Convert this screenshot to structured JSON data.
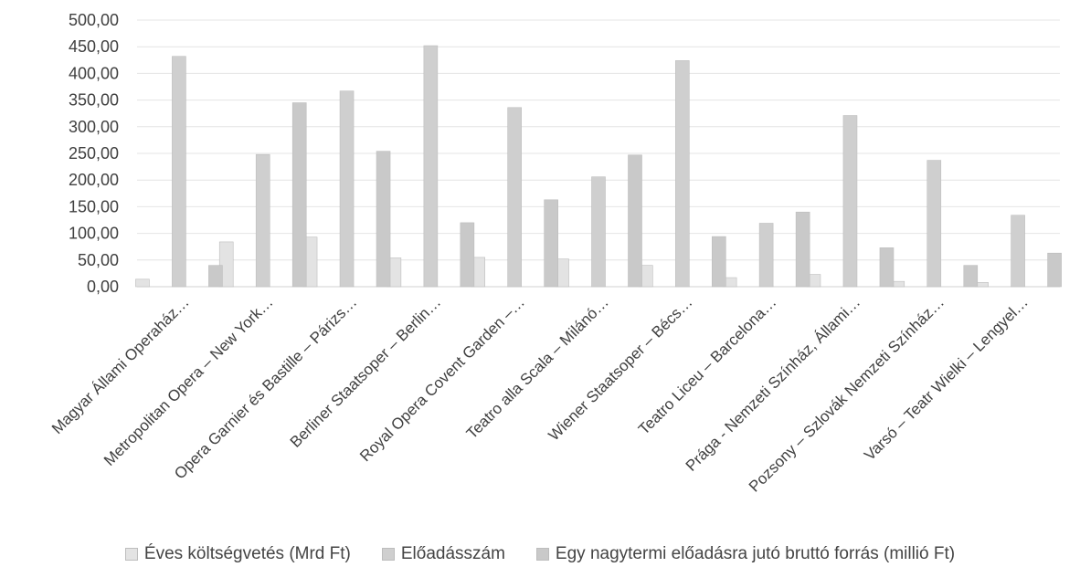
{
  "chart_data": {
    "type": "bar",
    "categories": [
      "Magyar Állami Operaház…",
      "Metropolitan Opera – New York…",
      "Opera Garnier és Bastille – Párizs…",
      "Berliner Staatsoper – Berlin…",
      "Royal Opera Covent Garden –…",
      "Teatro alla Scala – Milánó…",
      "Wiener Staatsoper – Bécs…",
      "Teatro Liceu – Barcelona…",
      "Prága - Nemzeti Színház, Állami…",
      "Pozsony – Szlovák Nemzeti Színház…",
      "Varsó – Teatr Wielki – Lengyel…"
    ],
    "series": [
      {
        "name": "Éves költségvetés (Mrd Ft)",
        "color": "#e3e3e3",
        "values": [
          14,
          84,
          93,
          54,
          55,
          52,
          40,
          17,
          23,
          10,
          8
        ]
      },
      {
        "name": "Előadásszám",
        "color": "#cfcfcf",
        "values": [
          432,
          248,
          367,
          452,
          336,
          206,
          424,
          119,
          321,
          237,
          134
        ]
      },
      {
        "name": "Egy nagytermi előadásra jutó bruttó forrás (millió Ft)",
        "color": "#c9c9c9",
        "values": [
          40,
          345,
          254,
          120,
          163,
          247,
          94,
          140,
          73,
          40,
          63
        ]
      }
    ],
    "y_ticks": [
      "0,00",
      "50,00",
      "100,00",
      "150,00",
      "200,00",
      "250,00",
      "300,00",
      "350,00",
      "400,00",
      "450,00",
      "500,00"
    ],
    "ylim": [
      0,
      500
    ],
    "grid": true,
    "legend_position": "bottom"
  }
}
